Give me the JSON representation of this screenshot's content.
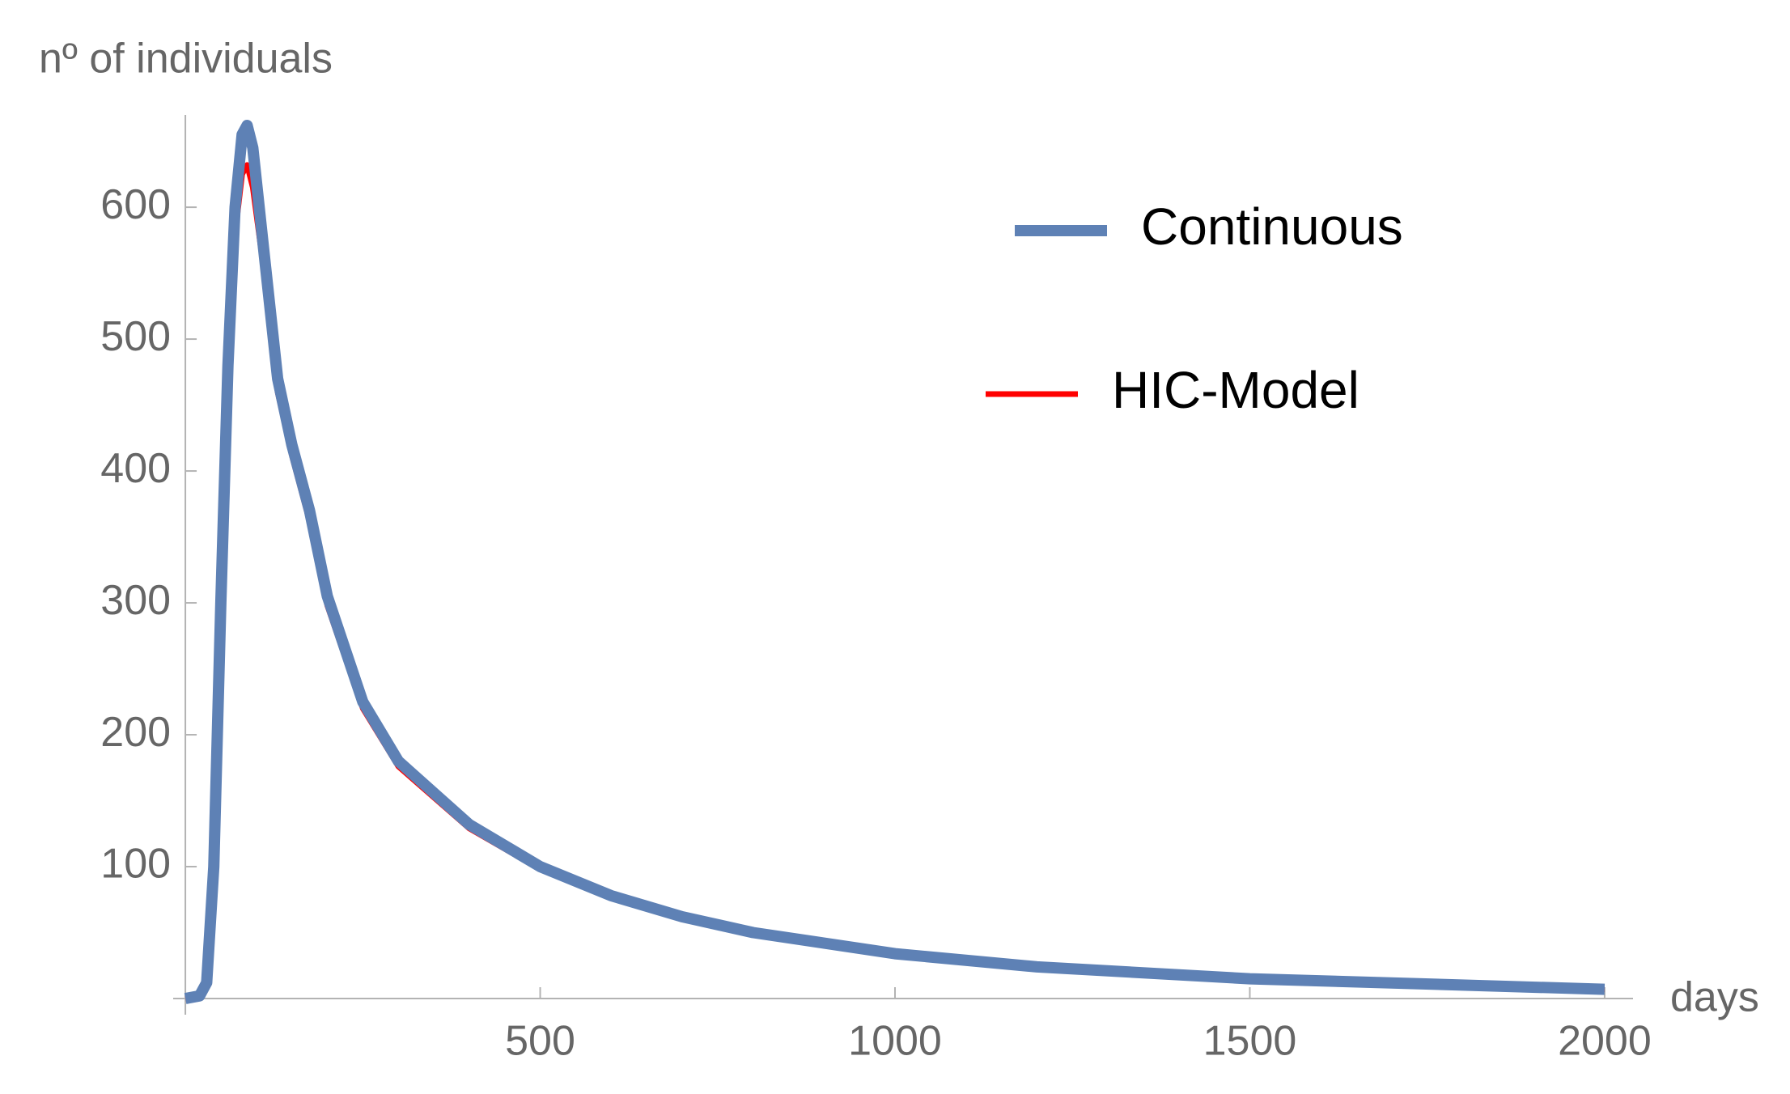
{
  "chart_data": {
    "type": "line",
    "y_label": "nº of individuals",
    "x_label": "days",
    "x": [
      0,
      20,
      30,
      40,
      50,
      60,
      70,
      80,
      87,
      95,
      110,
      130,
      150,
      175,
      200,
      250,
      300,
      400,
      500,
      600,
      700,
      800,
      1000,
      1200,
      1500,
      2000
    ],
    "series": [
      {
        "name": "Continuous",
        "color": "#5e81b5",
        "values": [
          0,
          2,
          12,
          100,
          300,
          480,
          600,
          655,
          662,
          645,
          570,
          470,
          420,
          370,
          305,
          225,
          180,
          132,
          100,
          78,
          62,
          50,
          34,
          24,
          15,
          7
        ]
      },
      {
        "name": "HIC-Model",
        "color": "#ff0000",
        "values": [
          0,
          2,
          12,
          95,
          290,
          465,
          580,
          625,
          632,
          615,
          555,
          460,
          412,
          362,
          298,
          220,
          176,
          129,
          98,
          76,
          60,
          49,
          33,
          23,
          14,
          7
        ]
      }
    ],
    "xlim": [
      -40,
      2040
    ],
    "ylim": [
      0,
      670
    ],
    "xticks": [
      500,
      1000,
      1500,
      2000
    ],
    "yticks": [
      100,
      200,
      300,
      400,
      500,
      600
    ],
    "legend": "top-right"
  }
}
